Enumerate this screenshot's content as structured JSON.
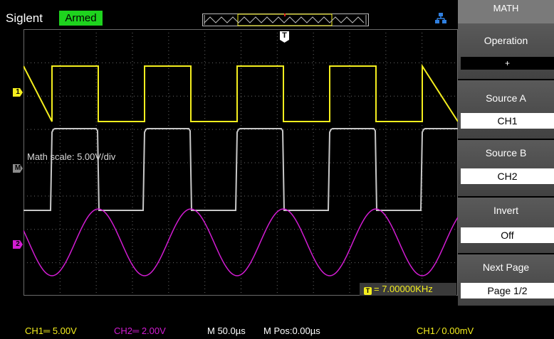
{
  "header": {
    "brand": "Siglent",
    "status_badge": "Armed"
  },
  "screen": {
    "math_scale_label": "Math scale: 5.00V/div",
    "frequency_readout": "= 7.00000KHz",
    "trigger_marker": "T",
    "channel_markers": {
      "ch1": "1",
      "math": "M",
      "ch2": "2"
    }
  },
  "menu": {
    "title": "MATH",
    "items": [
      {
        "label": "Operation",
        "value": "+"
      },
      {
        "label": "Source A",
        "value": "CH1"
      },
      {
        "label": "Source B",
        "value": "CH2"
      },
      {
        "label": "Invert",
        "value": "Off"
      },
      {
        "label": "Next Page",
        "value": "Page 1/2"
      }
    ]
  },
  "statusbar": {
    "ch1": "CH1═ 5.00V",
    "ch2": "CH2═ 2.00V",
    "timebase": "M 50.0µs",
    "mpos": "M Pos:0.00µs",
    "trigger": "CH1 ⁄ 0.00mV"
  },
  "colors": {
    "ch1": "#f4ee1e",
    "ch2": "#d21cd2",
    "math": "#c8c8c8",
    "armed": "#1ed31e",
    "grid": "#6a6a6a"
  },
  "icons": {
    "network": "network-icon"
  }
}
